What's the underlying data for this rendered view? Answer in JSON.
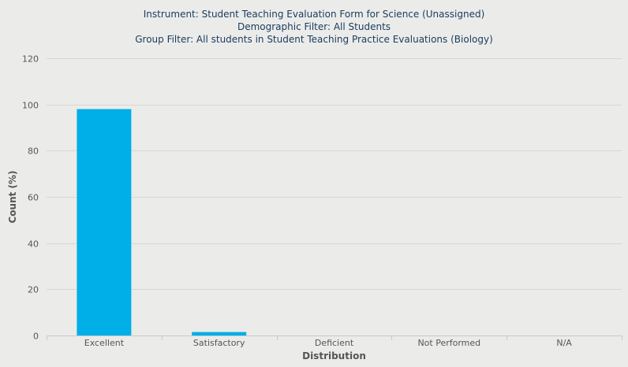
{
  "chart_data": {
    "type": "bar",
    "title_lines": [
      "Instrument: Student Teaching Evaluation Form for Science (Unassigned)",
      "Demographic Filter: All Students",
      "Group Filter: All students in Student Teaching Practice Evaluations (Biology)"
    ],
    "categories": [
      "Excellent",
      "Satisfactory",
      "Deficient",
      "Not Performed",
      "N/A"
    ],
    "values": [
      98,
      1.5,
      0,
      0,
      0
    ],
    "xlabel": "Distribution",
    "ylabel": "Count (%)",
    "ylim": [
      0,
      120
    ],
    "yticks": [
      0,
      20,
      40,
      60,
      80,
      100,
      120
    ],
    "grid": true,
    "legend": "none",
    "bar_color": "#00aee8"
  }
}
